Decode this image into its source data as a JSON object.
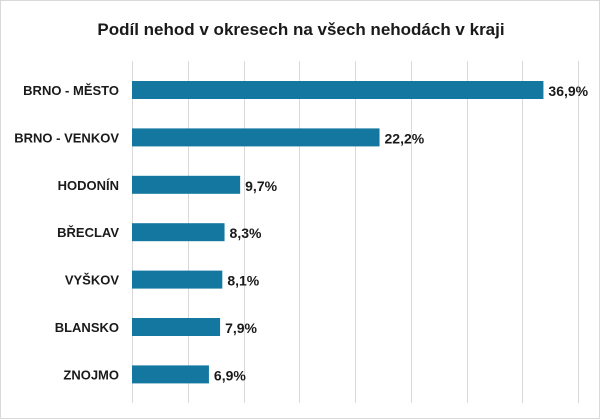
{
  "chart_data": {
    "type": "bar",
    "orientation": "horizontal",
    "title": "Podíl nehod v okresech na všech nehodách v kraji",
    "categories": [
      "BRNO - MĚSTO",
      "BRNO - VENKOV",
      "HODONÍN",
      "BŘECLAV",
      "VYŠKOV",
      "BLANSKO",
      "ZNOJMO"
    ],
    "values": [
      36.9,
      22.2,
      9.7,
      8.3,
      8.1,
      7.9,
      6.9
    ],
    "data_labels": [
      "36,9%",
      "22,2%",
      "9,7%",
      "8,3%",
      "8,1%",
      "7,9%",
      "6,9%"
    ],
    "xlim": [
      0,
      40
    ],
    "x_gridlines": [
      0,
      5,
      10,
      15,
      20,
      25,
      30,
      35,
      40
    ],
    "grid": true,
    "legend": "none",
    "bar_color": "#1477a0"
  }
}
